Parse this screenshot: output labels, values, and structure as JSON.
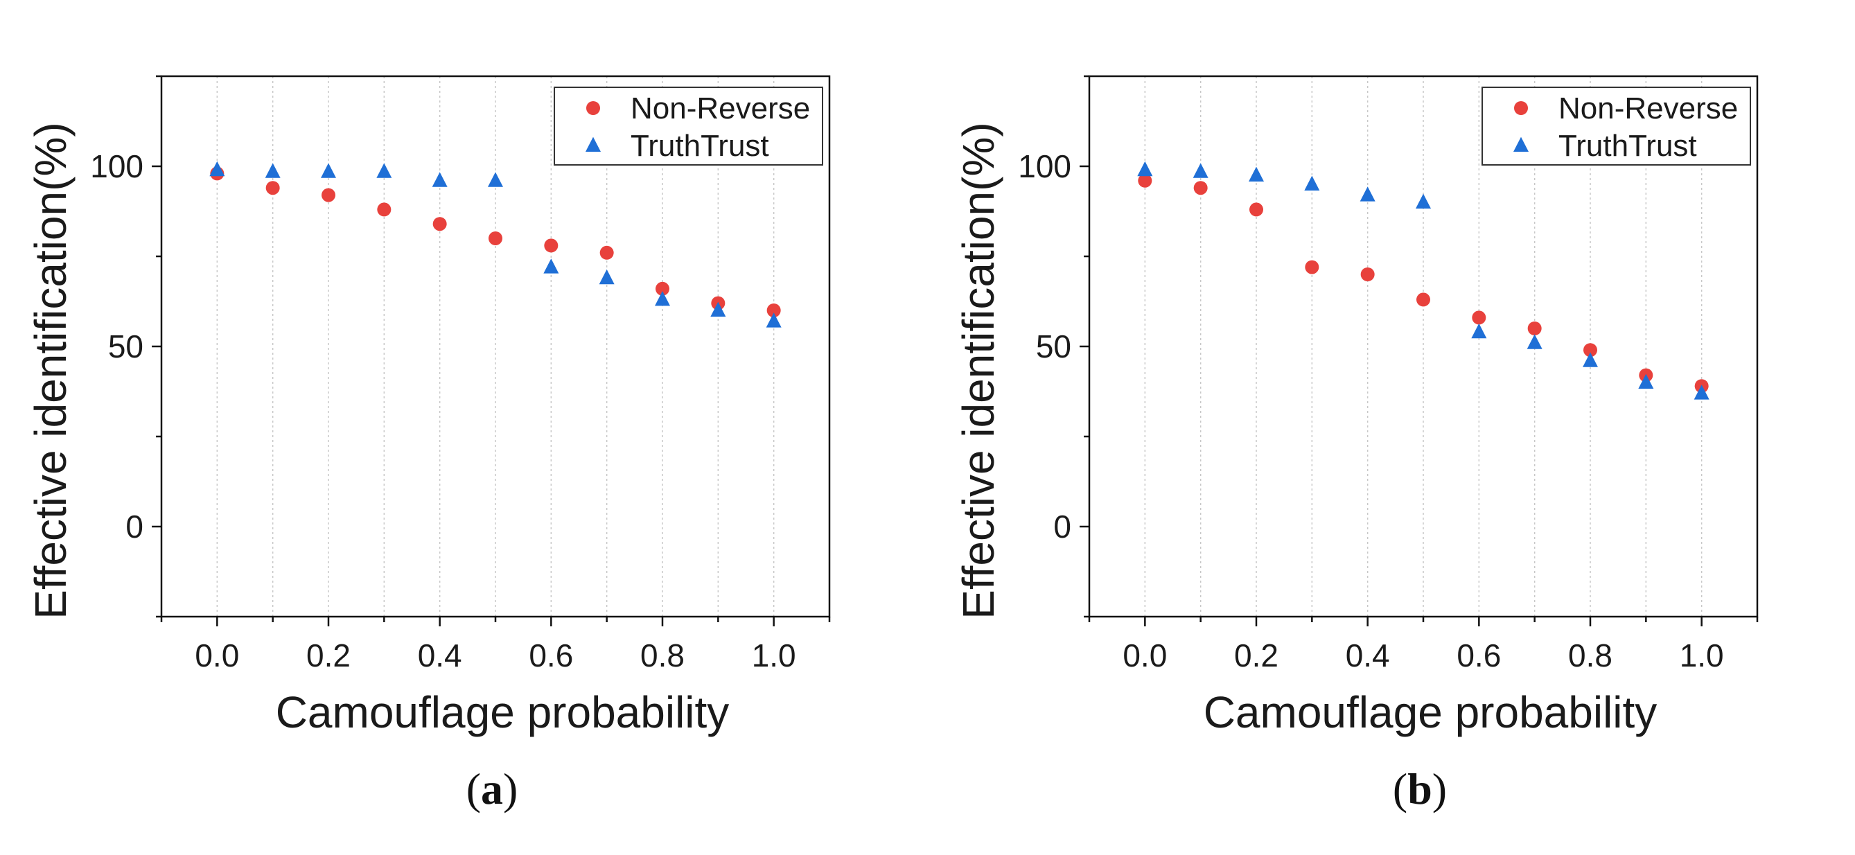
{
  "chart_data": [
    {
      "type": "scatter",
      "panel_label": "a",
      "xlabel": "Camouflage probability",
      "ylabel": "Effective identification(%)",
      "xlim": [
        -0.1,
        1.1
      ],
      "ylim": [
        -25,
        125
      ],
      "x_ticks": [
        0.0,
        0.2,
        0.4,
        0.6,
        0.8,
        1.0
      ],
      "x_tick_labels": [
        "0.0",
        "0.2",
        "0.4",
        "0.6",
        "0.8",
        "1.0"
      ],
      "y_ticks": [
        0,
        50,
        100
      ],
      "y_tick_labels": [
        "0",
        "50",
        "100"
      ],
      "grid": "vertical dotted",
      "legend_position": "top-right",
      "x": [
        0.0,
        0.1,
        0.2,
        0.3,
        0.4,
        0.5,
        0.6,
        0.7,
        0.8,
        0.9,
        1.0
      ],
      "series": [
        {
          "name": "Non-Reverse",
          "marker": "circle",
          "color": "#e8413c",
          "values": [
            98,
            94,
            92,
            88,
            84,
            80,
            78,
            76,
            66,
            62,
            60
          ]
        },
        {
          "name": "TruthTrust",
          "marker": "triangle",
          "color": "#1f6fd6",
          "values": [
            99,
            98.5,
            98.5,
            98.5,
            96,
            96,
            72,
            69,
            63,
            60,
            57
          ]
        }
      ]
    },
    {
      "type": "scatter",
      "panel_label": "b",
      "xlabel": "Camouflage probability",
      "ylabel": "Effective identification(%)",
      "xlim": [
        -0.1,
        1.1
      ],
      "ylim": [
        -25,
        125
      ],
      "x_ticks": [
        0.0,
        0.2,
        0.4,
        0.6,
        0.8,
        1.0
      ],
      "x_tick_labels": [
        "0.0",
        "0.2",
        "0.4",
        "0.6",
        "0.8",
        "1.0"
      ],
      "y_ticks": [
        0,
        50,
        100
      ],
      "y_tick_labels": [
        "0",
        "50",
        "100"
      ],
      "grid": "vertical dotted",
      "legend_position": "top-right",
      "x": [
        0.0,
        0.1,
        0.2,
        0.3,
        0.4,
        0.5,
        0.6,
        0.7,
        0.8,
        0.9,
        1.0
      ],
      "series": [
        {
          "name": "Non-Reverse",
          "marker": "circle",
          "color": "#e8413c",
          "values": [
            96,
            94,
            88,
            72,
            70,
            63,
            58,
            55,
            49,
            42,
            39
          ]
        },
        {
          "name": "TruthTrust",
          "marker": "triangle",
          "color": "#1f6fd6",
          "values": [
            99,
            98.5,
            97.5,
            95,
            92,
            90,
            54,
            51,
            46,
            40,
            37
          ]
        }
      ]
    }
  ]
}
